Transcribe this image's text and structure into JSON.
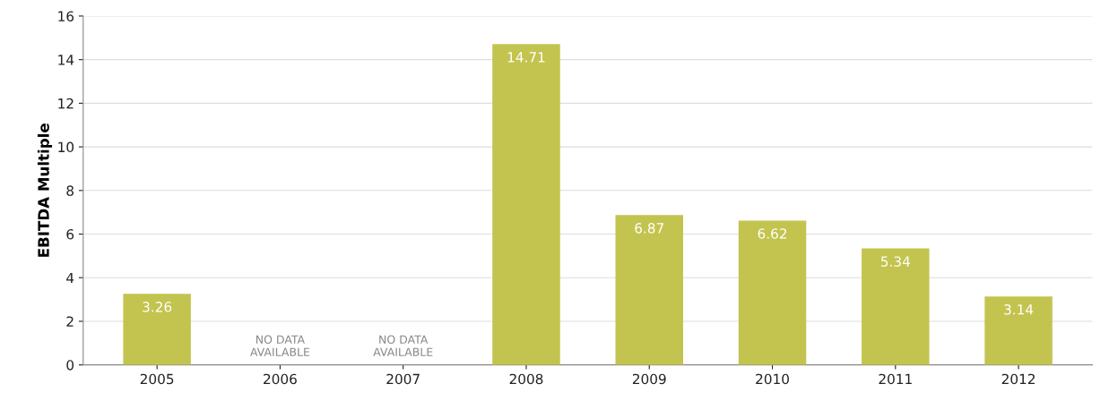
{
  "chart_data": {
    "type": "bar",
    "ylabel": "EBITDA Multiple",
    "categories": [
      "2005",
      "2006",
      "2007",
      "2008",
      "2009",
      "2010",
      "2011",
      "2012"
    ],
    "values": [
      3.26,
      null,
      null,
      14.71,
      6.87,
      6.62,
      5.34,
      3.14
    ],
    "color": "#c3c44f",
    "ylim": [
      0,
      16
    ],
    "yticks": [
      0,
      2,
      4,
      6,
      8,
      10,
      12,
      14,
      16
    ],
    "grid": "y",
    "data_labels": true,
    "annotations": [
      "NO DATA\nAVAILABLE",
      "NO DATA\nAVAILABLE"
    ]
  }
}
